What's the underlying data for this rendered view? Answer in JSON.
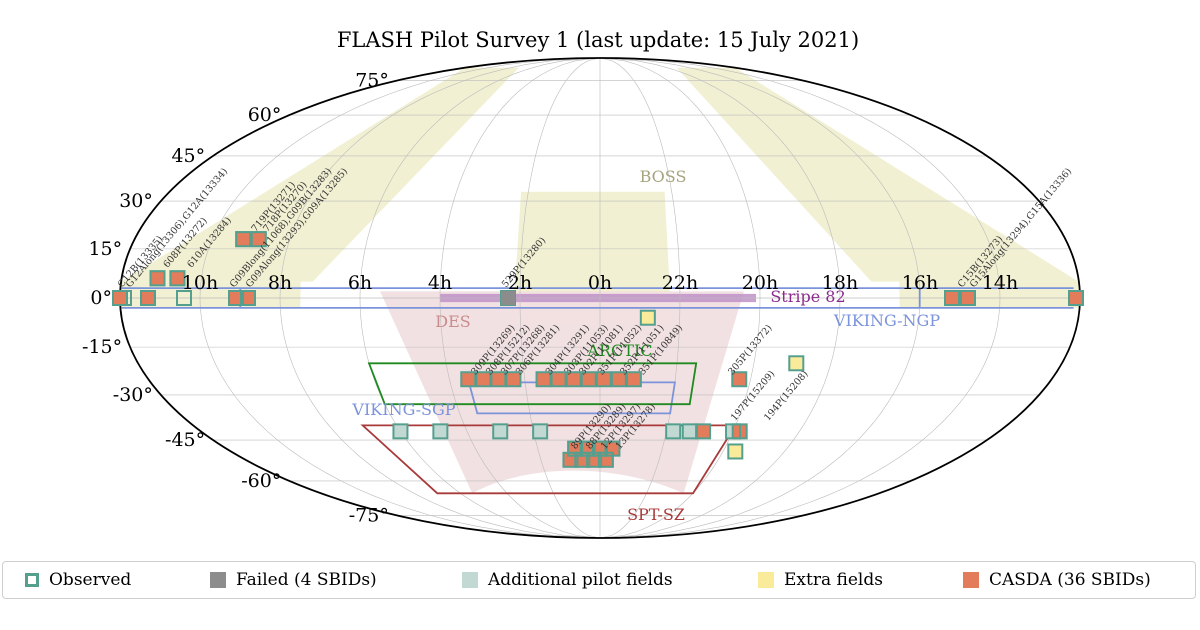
{
  "colors": {
    "observed_edge": "#559f8f",
    "failed": "#8c8c8c",
    "additional": "#c2d9d3",
    "extra": "#f9eb9a",
    "casda": "#e27c5a",
    "boss": "#f1f0d2",
    "des": "#f1dfe0",
    "stripe82": "#c090c8",
    "viking": "#7b93da",
    "arcticle": "#1f8a1f",
    "sptsz": "#a83a3a",
    "grid": "#bbbbbb"
  },
  "chart_data": {
    "type": "scatter",
    "projection": "mollweide",
    "title": "FLASH Pilot Survey 1 (last update: 15 July 2021)",
    "x_axis": {
      "quantity": "Right ascension",
      "tick_labels": [
        "14h",
        "16h",
        "18h",
        "20h",
        "22h",
        "0h",
        "2h",
        "4h",
        "6h",
        "8h",
        "10h"
      ],
      "tick_ra_hours": [
        14,
        16,
        18,
        20,
        22,
        0,
        2,
        4,
        6,
        8,
        10
      ],
      "direction": "RA increases to the left",
      "center_ra_hours": 0
    },
    "y_axis": {
      "quantity": "Declination",
      "tick_labels": [
        "75°",
        "60°",
        "45°",
        "30°",
        "15°",
        "0°",
        "-15°",
        "-30°",
        "-45°",
        "-60°",
        "-75°"
      ],
      "tick_dec_deg": [
        75,
        60,
        45,
        30,
        15,
        0,
        -15,
        -30,
        -45,
        -60,
        -75
      ]
    },
    "grid": true,
    "regions": [
      {
        "label": "BOSS",
        "type": "shaded"
      },
      {
        "label": "DES",
        "type": "shaded"
      },
      {
        "label": "Stripe 82",
        "type": "shaded"
      },
      {
        "label": "VIKING-NGP",
        "type": "outline",
        "ra_hours": [
          9.0,
          16.0
        ],
        "dec_deg": [
          -3.0,
          3.0
        ]
      },
      {
        "label": "VIKING-SGP",
        "type": "outline",
        "ra_hours": [
          22.0,
          3.5
        ],
        "dec_deg": [
          -36.0,
          -26.0
        ]
      },
      {
        "label": "ARCTIC",
        "type": "outline",
        "ra_hours": [
          21.5,
          6.0
        ],
        "dec_deg": [
          -33.0,
          -20.0
        ]
      },
      {
        "label": "SPT-SZ",
        "type": "outline",
        "ra_hours": [
          20.0,
          7.0
        ],
        "dec_deg": [
          -65.0,
          -40.0
        ]
      }
    ],
    "field_labels": [
      {
        "text": "G12Along(13306),G12A(13334)",
        "ra_hours": 11.8,
        "dec_deg": 0
      },
      {
        "text": "608P(13272)",
        "ra_hours": 10.9,
        "dec_deg": 6
      },
      {
        "text": "610A(13284)",
        "ra_hours": 10.3,
        "dec_deg": 6
      },
      {
        "text": "719P(13271)",
        "ra_hours": 8.9,
        "dec_deg": 17
      },
      {
        "text": "718P(13270)",
        "ra_hours": 8.6,
        "dec_deg": 17
      },
      {
        "text": "G09Blong(11068),G09B(13283)",
        "ra_hours": 9.2,
        "dec_deg": 0
      },
      {
        "text": "G09Along(13293),G09A(13285)",
        "ra_hours": 8.8,
        "dec_deg": 0
      },
      {
        "text": "529P(13280)",
        "ra_hours": 2.4,
        "dec_deg": 0
      },
      {
        "text": "C15B(13273)",
        "ra_hours": 15.0,
        "dec_deg": 0
      },
      {
        "text": "G15Along(13294),G15A(13336)",
        "ra_hours": 14.7,
        "dec_deg": 0
      },
      {
        "text": "C12B(13335)",
        "ra_hours": 12.0,
        "dec_deg": 0
      },
      {
        "text": "309P(13269)",
        "ra_hours": 3.4,
        "dec_deg": -27
      },
      {
        "text": "308P(15212)",
        "ra_hours": 3.0,
        "dec_deg": -27
      },
      {
        "text": "307P(13268)",
        "ra_hours": 2.6,
        "dec_deg": -27
      },
      {
        "text": "306P(13281)",
        "ra_hours": 2.2,
        "dec_deg": -27
      },
      {
        "text": "304P(13291)",
        "ra_hours": 1.4,
        "dec_deg": -27
      },
      {
        "text": "303P(11053)",
        "ra_hours": 0.9,
        "dec_deg": -27
      },
      {
        "text": "302P(11081)",
        "ra_hours": 0.5,
        "dec_deg": -27
      },
      {
        "text": "351P(11052)",
        "ra_hours": 0.0,
        "dec_deg": -27
      },
      {
        "text": "352P(11051)",
        "ra_hours": 23.4,
        "dec_deg": -27
      },
      {
        "text": "351P(10849)",
        "ra_hours": 22.9,
        "dec_deg": -27
      },
      {
        "text": "305P(13372)",
        "ra_hours": 20.5,
        "dec_deg": -27
      },
      {
        "text": "197P(15209)",
        "ra_hours": 20.0,
        "dec_deg": -42
      },
      {
        "text": "194P(15208)",
        "ra_hours": 19.0,
        "dec_deg": -42
      },
      {
        "text": "89P(13290)",
        "ra_hours": 0.9,
        "dec_deg": -52
      },
      {
        "text": "88P(13289)",
        "ra_hours": 0.4,
        "dec_deg": -52
      },
      {
        "text": "12P(13297)",
        "ra_hours": 23.9,
        "dec_deg": -52
      },
      {
        "text": "13P(13278)",
        "ra_hours": 23.4,
        "dec_deg": -52
      }
    ],
    "series": [
      {
        "name": "Observed",
        "points": [
          {
            "ra_hours": 12.1,
            "dec_deg": 0
          },
          {
            "ra_hours": 11.9,
            "dec_deg": 0
          },
          {
            "ra_hours": 11.3,
            "dec_deg": 0
          },
          {
            "ra_hours": 11.1,
            "dec_deg": 6
          },
          {
            "ra_hours": 10.6,
            "dec_deg": 6
          },
          {
            "ra_hours": 10.4,
            "dec_deg": 0
          },
          {
            "ra_hours": 9.1,
            "dec_deg": 0
          },
          {
            "ra_hours": 8.8,
            "dec_deg": 0
          },
          {
            "ra_hours": 9.2,
            "dec_deg": 18
          },
          {
            "ra_hours": 8.8,
            "dec_deg": 18
          },
          {
            "ra_hours": 2.3,
            "dec_deg": 0
          },
          {
            "ra_hours": 15.2,
            "dec_deg": 0
          },
          {
            "ra_hours": 14.8,
            "dec_deg": 0
          },
          {
            "ra_hours": 12.0,
            "dec_deg": 0
          }
        ]
      },
      {
        "name": "Failed (4 SBIDs)",
        "points": [
          {
            "ra_hours": 2.3,
            "dec_deg": 0
          }
        ]
      },
      {
        "name": "Additional pilot fields",
        "points": [
          {
            "ra_hours": 6.0,
            "dec_deg": -42
          },
          {
            "ra_hours": 4.8,
            "dec_deg": -42
          },
          {
            "ra_hours": 3.0,
            "dec_deg": -42
          },
          {
            "ra_hours": 1.8,
            "dec_deg": -42
          },
          {
            "ra_hours": 21.8,
            "dec_deg": -42
          },
          {
            "ra_hours": 21.3,
            "dec_deg": -42
          },
          {
            "ra_hours": 20.0,
            "dec_deg": -42
          }
        ]
      },
      {
        "name": "Extra fields",
        "points": [
          {
            "ra_hours": 22.8,
            "dec_deg": -6
          },
          {
            "ra_hours": 18.9,
            "dec_deg": -20
          },
          {
            "ra_hours": 19.6,
            "dec_deg": -49
          }
        ]
      },
      {
        "name": "CASDA (36 SBIDs)",
        "points": [
          {
            "ra_hours": 12.1,
            "dec_deg": 0
          },
          {
            "ra_hours": 11.3,
            "dec_deg": 0
          },
          {
            "ra_hours": 11.1,
            "dec_deg": 6
          },
          {
            "ra_hours": 10.6,
            "dec_deg": 6
          },
          {
            "ra_hours": 9.1,
            "dec_deg": 0
          },
          {
            "ra_hours": 8.8,
            "dec_deg": 0
          },
          {
            "ra_hours": 9.2,
            "dec_deg": 18
          },
          {
            "ra_hours": 8.8,
            "dec_deg": 18
          },
          {
            "ra_hours": 15.2,
            "dec_deg": 0
          },
          {
            "ra_hours": 14.8,
            "dec_deg": 0
          },
          {
            "ra_hours": 12.0,
            "dec_deg": 0
          },
          {
            "ra_hours": 3.5,
            "dec_deg": -25
          },
          {
            "ra_hours": 3.1,
            "dec_deg": -25
          },
          {
            "ra_hours": 2.7,
            "dec_deg": -25
          },
          {
            "ra_hours": 2.3,
            "dec_deg": -25
          },
          {
            "ra_hours": 1.5,
            "dec_deg": -25
          },
          {
            "ra_hours": 1.1,
            "dec_deg": -25
          },
          {
            "ra_hours": 0.7,
            "dec_deg": -25
          },
          {
            "ra_hours": 0.3,
            "dec_deg": -25
          },
          {
            "ra_hours": 23.9,
            "dec_deg": -25
          },
          {
            "ra_hours": 23.5,
            "dec_deg": -25
          },
          {
            "ra_hours": 23.1,
            "dec_deg": -25
          },
          {
            "ra_hours": 20.3,
            "dec_deg": -25
          },
          {
            "ra_hours": 0.8,
            "dec_deg": -48
          },
          {
            "ra_hours": 0.4,
            "dec_deg": -48
          },
          {
            "ra_hours": 0.0,
            "dec_deg": -48
          },
          {
            "ra_hours": 23.6,
            "dec_deg": -48
          },
          {
            "ra_hours": 1.0,
            "dec_deg": -52
          },
          {
            "ra_hours": 0.6,
            "dec_deg": -52
          },
          {
            "ra_hours": 0.2,
            "dec_deg": -52
          },
          {
            "ra_hours": 23.8,
            "dec_deg": -52
          },
          {
            "ra_hours": 20.9,
            "dec_deg": -42
          },
          {
            "ra_hours": 19.8,
            "dec_deg": -42
          }
        ]
      }
    ],
    "legend": {
      "placement": "bottom",
      "entries": [
        {
          "label": "Observed",
          "style": "outline"
        },
        {
          "label": "Failed (4 SBIDs)",
          "style": "failed"
        },
        {
          "label": "Additional pilot fields",
          "style": "additional"
        },
        {
          "label": "Extra fields",
          "style": "extra"
        },
        {
          "label": "CASDA (36 SBIDs)",
          "style": "casda"
        }
      ]
    }
  }
}
